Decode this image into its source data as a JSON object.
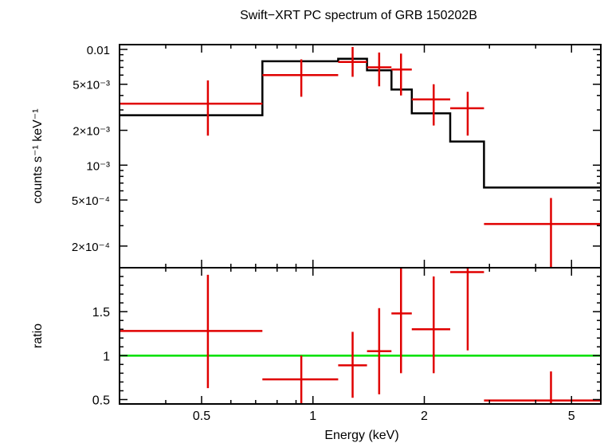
{
  "chart_data": {
    "type": "scatter",
    "title": "Swift−XRT PC spectrum of GRB 150202B",
    "xlabel": "Energy (keV)",
    "xscale": "log",
    "xlim": [
      0.3,
      6.0
    ],
    "x_ticks": [
      {
        "value": 0.5,
        "label": "0.5"
      },
      {
        "value": 1,
        "label": "1"
      },
      {
        "value": 2,
        "label": "2"
      },
      {
        "value": 5,
        "label": "5"
      }
    ],
    "colors": {
      "data": "#e00000",
      "model": "#000000",
      "unity": "#00e000"
    },
    "top_panel": {
      "ylabel": "counts s⁻¹ keV⁻¹",
      "yscale": "log",
      "ylim": [
        0.00013,
        0.011
      ],
      "y_ticks": [
        {
          "value": 0.01,
          "label": "0.01"
        },
        {
          "value": 0.005,
          "label": "5×10⁻³"
        },
        {
          "value": 0.002,
          "label": "2×10⁻³"
        },
        {
          "value": 0.001,
          "label": "10⁻³"
        },
        {
          "value": 0.0005,
          "label": "5×10⁻⁴"
        },
        {
          "value": 0.0002,
          "label": "2×10⁻⁴"
        }
      ],
      "data_points": [
        {
          "x": 0.52,
          "xlo": 0.3,
          "xhi": 0.73,
          "y": 0.0034,
          "ylo": 0.0018,
          "yhi": 0.0054
        },
        {
          "x": 0.93,
          "xlo": 0.73,
          "xhi": 1.17,
          "y": 0.006,
          "ylo": 0.0039,
          "yhi": 0.0082
        },
        {
          "x": 1.28,
          "xlo": 1.17,
          "xhi": 1.4,
          "y": 0.0078,
          "ylo": 0.0058,
          "yhi": 0.0105
        },
        {
          "x": 1.51,
          "xlo": 1.4,
          "xhi": 1.63,
          "y": 0.007,
          "ylo": 0.0048,
          "yhi": 0.0094
        },
        {
          "x": 1.73,
          "xlo": 1.63,
          "xhi": 1.85,
          "y": 0.0067,
          "ylo": 0.004,
          "yhi": 0.0092
        },
        {
          "x": 2.12,
          "xlo": 1.85,
          "xhi": 2.35,
          "y": 0.0037,
          "ylo": 0.0022,
          "yhi": 0.005
        },
        {
          "x": 2.62,
          "xlo": 2.35,
          "xhi": 2.9,
          "y": 0.0031,
          "ylo": 0.0018,
          "yhi": 0.0043
        },
        {
          "x": 4.4,
          "xlo": 2.9,
          "xhi": 6.0,
          "y": 0.00031,
          "ylo": 0.00013,
          "yhi": 0.00052
        }
      ],
      "model_steps": [
        {
          "xlo": 0.3,
          "xhi": 0.73,
          "y": 0.0027
        },
        {
          "xlo": 0.73,
          "xhi": 1.17,
          "y": 0.0079
        },
        {
          "xlo": 1.17,
          "xhi": 1.4,
          "y": 0.0083
        },
        {
          "xlo": 1.4,
          "xhi": 1.63,
          "y": 0.0066
        },
        {
          "xlo": 1.63,
          "xhi": 1.85,
          "y": 0.0045
        },
        {
          "xlo": 1.85,
          "xhi": 2.35,
          "y": 0.0028
        },
        {
          "xlo": 2.35,
          "xhi": 2.9,
          "y": 0.0016
        },
        {
          "xlo": 2.9,
          "xhi": 6.0,
          "y": 0.00064
        }
      ]
    },
    "bottom_panel": {
      "ylabel": "ratio",
      "yscale": "linear",
      "ylim": [
        0.45,
        2.0
      ],
      "y_ticks": [
        {
          "value": 0.5,
          "label": "0.5"
        },
        {
          "value": 1,
          "label": "1"
        },
        {
          "value": 1.5,
          "label": "1.5"
        }
      ],
      "unity_line": 1.0,
      "data_points": [
        {
          "x": 0.52,
          "xlo": 0.3,
          "xhi": 0.73,
          "y": 1.28,
          "ylo": 0.63,
          "yhi": 1.92
        },
        {
          "x": 0.93,
          "xlo": 0.73,
          "xhi": 1.17,
          "y": 0.73,
          "ylo": 0.45,
          "yhi": 1.0
        },
        {
          "x": 1.28,
          "xlo": 1.17,
          "xhi": 1.4,
          "y": 0.89,
          "ylo": 0.52,
          "yhi": 1.27
        },
        {
          "x": 1.51,
          "xlo": 1.4,
          "xhi": 1.63,
          "y": 1.05,
          "ylo": 0.56,
          "yhi": 1.54
        },
        {
          "x": 1.73,
          "xlo": 1.63,
          "xhi": 1.85,
          "y": 1.48,
          "ylo": 0.8,
          "yhi": 2.0
        },
        {
          "x": 2.12,
          "xlo": 1.85,
          "xhi": 2.35,
          "y": 1.3,
          "ylo": 0.8,
          "yhi": 1.9
        },
        {
          "x": 2.62,
          "xlo": 2.35,
          "xhi": 2.9,
          "y": 1.95,
          "ylo": 1.06,
          "yhi": 2.0
        },
        {
          "x": 4.4,
          "xlo": 2.9,
          "xhi": 6.0,
          "y": 0.49,
          "ylo": 0.45,
          "yhi": 0.82
        }
      ]
    }
  }
}
